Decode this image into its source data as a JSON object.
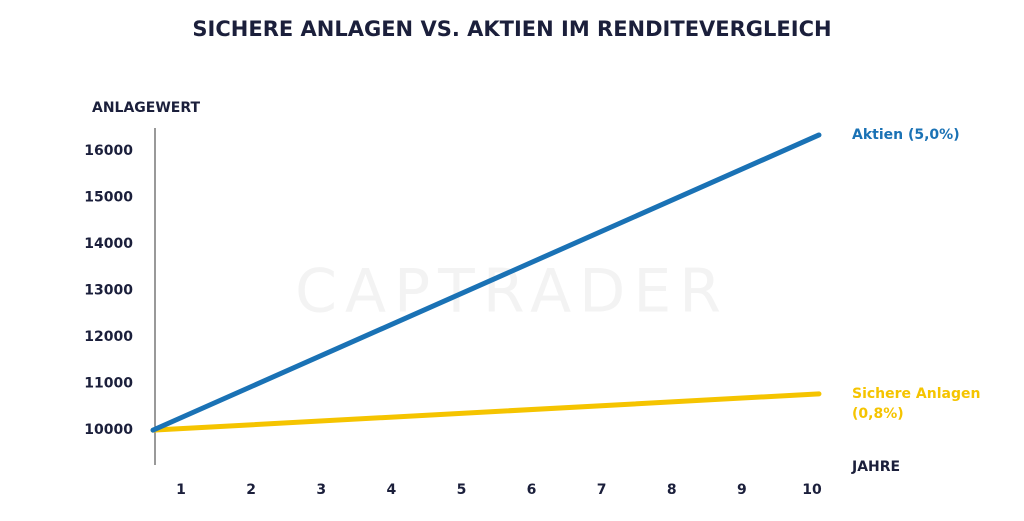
{
  "chart_data": {
    "type": "line",
    "title": "SICHERE ANLAGEN VS. AKTIEN IM RENDITEVERGLEICH",
    "watermark": "CAPTRADER",
    "y_label": "ANLAGEWERT",
    "x_label": "JAHRE",
    "x": [
      0.6,
      10.1
    ],
    "series": [
      {
        "name": "Aktien (5,0%)",
        "color": "#1a72b5",
        "values": [
          10000,
          16350
        ]
      },
      {
        "name": "Sichere Anlagen (0,8%)",
        "color": "#f5c400",
        "values": [
          10000,
          10780
        ]
      }
    ],
    "xlim": [
      0.6,
      10.4
    ],
    "xticks": [
      1,
      2,
      3,
      4,
      5,
      6,
      7,
      8,
      9,
      10
    ],
    "ylim": [
      9250,
      16500
    ],
    "yticks": [
      10000,
      11000,
      12000,
      13000,
      14000,
      15000,
      16000
    ],
    "grid": false
  }
}
